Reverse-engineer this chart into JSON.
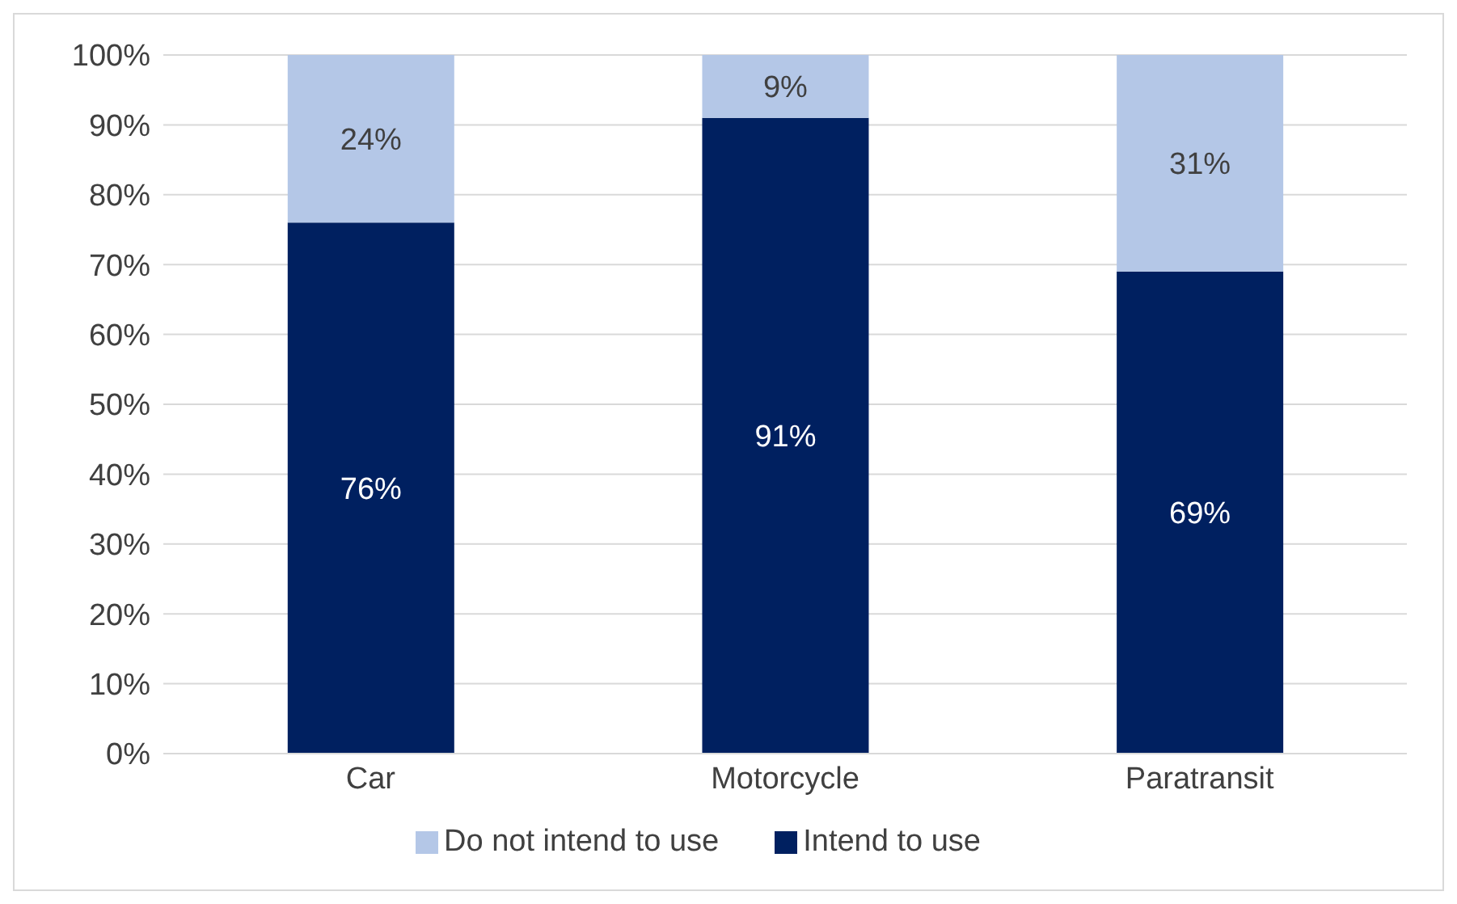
{
  "chart_data": {
    "type": "bar",
    "stacked": true,
    "categories": [
      "Car",
      "Motorcycle",
      "Paratransit"
    ],
    "series": [
      {
        "name": "Intend to use",
        "color": "#002060",
        "values": [
          76,
          91,
          69
        ],
        "value_labels": [
          "76%",
          "91%",
          "69%"
        ]
      },
      {
        "name": "Do not intend to use",
        "color": "#b4c7e7",
        "values": [
          24,
          9,
          31
        ],
        "value_labels": [
          "24%",
          "9%",
          "31%"
        ]
      }
    ],
    "ylim": [
      0,
      100
    ],
    "yticks": [
      {
        "value": 0,
        "label": "0%"
      },
      {
        "value": 10,
        "label": "10%"
      },
      {
        "value": 20,
        "label": "20%"
      },
      {
        "value": 30,
        "label": "30%"
      },
      {
        "value": 40,
        "label": "40%"
      },
      {
        "value": 50,
        "label": "50%"
      },
      {
        "value": 60,
        "label": "60%"
      },
      {
        "value": 70,
        "label": "70%"
      },
      {
        "value": 80,
        "label": "80%"
      },
      {
        "value": 90,
        "label": "90%"
      },
      {
        "value": 100,
        "label": "100%"
      }
    ],
    "grid": "y",
    "legend": "bottom"
  }
}
